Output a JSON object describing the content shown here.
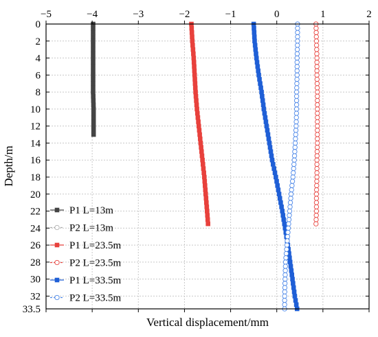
{
  "chart_data": {
    "type": "line",
    "xlabel": "Vertical displacement/mm",
    "ylabel": "Depth/m",
    "xlim": [
      -5,
      2
    ],
    "ylim": [
      0,
      33.5
    ],
    "y_inverted": true,
    "x_axis_position": "top",
    "grid": true,
    "legend_position": "bottom-left",
    "x_ticks": [
      "−5",
      "−4",
      "−3",
      "−2",
      "−1",
      "0",
      "1",
      "2"
    ],
    "y_ticks": [
      "0",
      "2",
      "4",
      "6",
      "8",
      "10",
      "12",
      "14",
      "16",
      "18",
      "20",
      "22",
      "24",
      "26",
      "28",
      "30",
      "32",
      "33.5"
    ],
    "series": [
      {
        "name": "P1 L=13m",
        "color": "#444444",
        "marker": "square-filled",
        "points": [
          [
            -3.98,
            0
          ],
          [
            -3.98,
            2
          ],
          [
            -3.98,
            4
          ],
          [
            -3.98,
            6
          ],
          [
            -3.98,
            8
          ],
          [
            -3.97,
            10
          ],
          [
            -3.97,
            12
          ],
          [
            -3.97,
            13
          ]
        ]
      },
      {
        "name": "P2 L=13m",
        "color": "#b0b0b0",
        "marker": "circle-open",
        "dashed": true,
        "points": []
      },
      {
        "name": "P1 L=23.5m",
        "color": "#e8413c",
        "marker": "square-filled",
        "points": [
          [
            -1.85,
            0
          ],
          [
            -1.83,
            2
          ],
          [
            -1.8,
            4
          ],
          [
            -1.78,
            6
          ],
          [
            -1.76,
            8
          ],
          [
            -1.73,
            10
          ],
          [
            -1.69,
            12
          ],
          [
            -1.65,
            14
          ],
          [
            -1.61,
            16
          ],
          [
            -1.57,
            18
          ],
          [
            -1.54,
            20
          ],
          [
            -1.51,
            22
          ],
          [
            -1.49,
            23.5
          ]
        ]
      },
      {
        "name": "P2 L=23.5m",
        "color": "#e8413c",
        "marker": "circle-open",
        "dashed": true,
        "points": [
          [
            0.85,
            0
          ],
          [
            0.86,
            2
          ],
          [
            0.87,
            4
          ],
          [
            0.87,
            6
          ],
          [
            0.88,
            8
          ],
          [
            0.88,
            10
          ],
          [
            0.88,
            12
          ],
          [
            0.88,
            14
          ],
          [
            0.87,
            16
          ],
          [
            0.87,
            18
          ],
          [
            0.86,
            20
          ],
          [
            0.86,
            22
          ],
          [
            0.85,
            23.5
          ]
        ]
      },
      {
        "name": "P1 L=33.5m",
        "color": "#1f5fd6",
        "marker": "square-filled",
        "points": [
          [
            -0.5,
            0
          ],
          [
            -0.48,
            2
          ],
          [
            -0.44,
            4
          ],
          [
            -0.39,
            6
          ],
          [
            -0.33,
            8
          ],
          [
            -0.28,
            10
          ],
          [
            -0.22,
            12
          ],
          [
            -0.16,
            14
          ],
          [
            -0.1,
            16
          ],
          [
            -0.02,
            18
          ],
          [
            0.05,
            20
          ],
          [
            0.12,
            22
          ],
          [
            0.18,
            24
          ],
          [
            0.24,
            26
          ],
          [
            0.29,
            28
          ],
          [
            0.34,
            30
          ],
          [
            0.39,
            32
          ],
          [
            0.44,
            33.5
          ]
        ]
      },
      {
        "name": "P2 L=33.5m",
        "color": "#4a86e8",
        "marker": "circle-open",
        "dashed": true,
        "points": [
          [
            0.45,
            0
          ],
          [
            0.45,
            2
          ],
          [
            0.44,
            4
          ],
          [
            0.44,
            6
          ],
          [
            0.43,
            8
          ],
          [
            0.43,
            10
          ],
          [
            0.42,
            12
          ],
          [
            0.4,
            14
          ],
          [
            0.38,
            16
          ],
          [
            0.35,
            18
          ],
          [
            0.31,
            20
          ],
          [
            0.28,
            22
          ],
          [
            0.25,
            24
          ],
          [
            0.22,
            26
          ],
          [
            0.19,
            28
          ],
          [
            0.18,
            30
          ],
          [
            0.17,
            32
          ],
          [
            0.17,
            33.5
          ]
        ]
      }
    ]
  }
}
